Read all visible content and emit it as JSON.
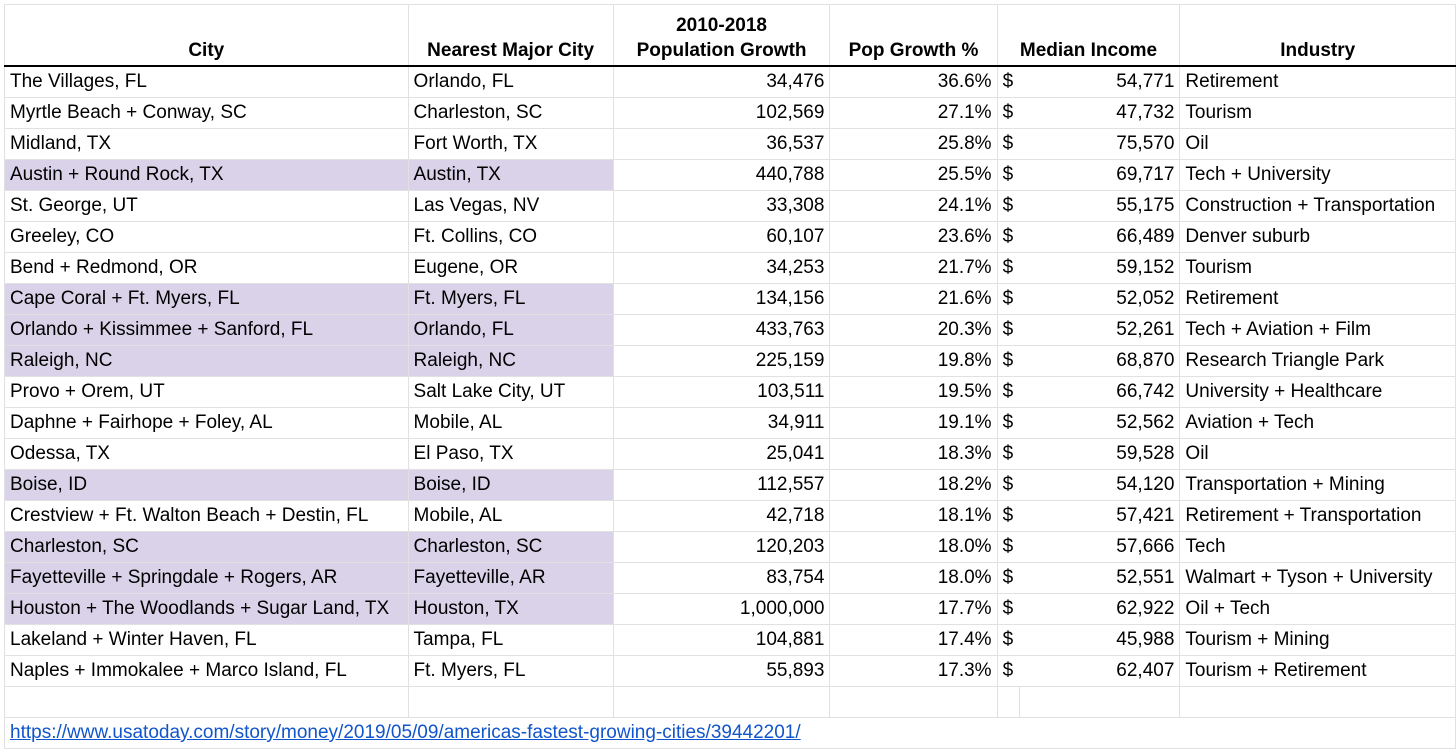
{
  "headers": {
    "city": "City",
    "nearest": "Nearest Major City",
    "pop_growth_line1": "2010-2018",
    "pop_growth_line2": "Population Growth",
    "pct": "Pop Growth %",
    "income": "Median Income",
    "industry": "Industry"
  },
  "currency_symbol": "$",
  "highlight_color": "#d9d2e9",
  "link_color": "#1155cc",
  "rows": [
    {
      "city": "The Villages, FL",
      "nearest": "Orlando, FL",
      "pop": "34,476",
      "pct": "36.6%",
      "income": "54,771",
      "industry": "Retirement",
      "highlight": false
    },
    {
      "city": "Myrtle Beach + Conway, SC",
      "nearest": "Charleston, SC",
      "pop": "102,569",
      "pct": "27.1%",
      "income": "47,732",
      "industry": "Tourism",
      "highlight": false
    },
    {
      "city": "Midland, TX",
      "nearest": "Fort Worth, TX",
      "pop": "36,537",
      "pct": "25.8%",
      "income": "75,570",
      "industry": "Oil",
      "highlight": false
    },
    {
      "city": "Austin + Round Rock, TX",
      "nearest": "Austin, TX",
      "pop": "440,788",
      "pct": "25.5%",
      "income": "69,717",
      "industry": "Tech + University",
      "highlight": true
    },
    {
      "city": "St. George, UT",
      "nearest": "Las Vegas, NV",
      "pop": "33,308",
      "pct": "24.1%",
      "income": "55,175",
      "industry": "Construction + Transportation",
      "highlight": false
    },
    {
      "city": "Greeley, CO",
      "nearest": "Ft. Collins, CO",
      "pop": "60,107",
      "pct": "23.6%",
      "income": "66,489",
      "industry": "Denver suburb",
      "highlight": false
    },
    {
      "city": "Bend + Redmond, OR",
      "nearest": "Eugene, OR",
      "pop": "34,253",
      "pct": "21.7%",
      "income": "59,152",
      "industry": "Tourism",
      "highlight": false
    },
    {
      "city": "Cape Coral + Ft. Myers, FL",
      "nearest": "Ft. Myers, FL",
      "pop": "134,156",
      "pct": "21.6%",
      "income": "52,052",
      "industry": "Retirement",
      "highlight": true
    },
    {
      "city": "Orlando + Kissimmee + Sanford, FL",
      "nearest": "Orlando, FL",
      "pop": "433,763",
      "pct": "20.3%",
      "income": "52,261",
      "industry": "Tech + Aviation + Film",
      "highlight": true
    },
    {
      "city": "Raleigh, NC",
      "nearest": "Raleigh, NC",
      "pop": "225,159",
      "pct": "19.8%",
      "income": "68,870",
      "industry": "Research Triangle Park",
      "highlight": true
    },
    {
      "city": "Provo + Orem, UT",
      "nearest": "Salt Lake City, UT",
      "pop": "103,511",
      "pct": "19.5%",
      "income": "66,742",
      "industry": "University + Healthcare",
      "highlight": false
    },
    {
      "city": "Daphne + Fairhope + Foley, AL",
      "nearest": "Mobile, AL",
      "pop": "34,911",
      "pct": "19.1%",
      "income": "52,562",
      "industry": "Aviation + Tech",
      "highlight": false
    },
    {
      "city": "Odessa, TX",
      "nearest": "El Paso, TX",
      "pop": "25,041",
      "pct": "18.3%",
      "income": "59,528",
      "industry": "Oil",
      "highlight": false
    },
    {
      "city": "Boise, ID",
      "nearest": "Boise, ID",
      "pop": "112,557",
      "pct": "18.2%",
      "income": "54,120",
      "industry": "Transportation + Mining",
      "highlight": true
    },
    {
      "city": "Crestview + Ft. Walton Beach + Destin, FL",
      "nearest": "Mobile, AL",
      "pop": "42,718",
      "pct": "18.1%",
      "income": "57,421",
      "industry": "Retirement + Transportation",
      "highlight": false
    },
    {
      "city": "Charleston, SC",
      "nearest": "Charleston, SC",
      "pop": "120,203",
      "pct": "18.0%",
      "income": "57,666",
      "industry": "Tech",
      "highlight": true
    },
    {
      "city": "Fayetteville + Springdale + Rogers, AR",
      "nearest": "Fayetteville, AR",
      "pop": "83,754",
      "pct": "18.0%",
      "income": "52,551",
      "industry": "Walmart + Tyson + University",
      "highlight": true
    },
    {
      "city": "Houston + The Woodlands + Sugar Land, TX",
      "nearest": "Houston, TX",
      "pop": "1,000,000",
      "pct": "17.7%",
      "income": "62,922",
      "industry": "Oil + Tech",
      "highlight": true
    },
    {
      "city": "Lakeland + Winter Haven, FL",
      "nearest": "Tampa, FL",
      "pop": "104,881",
      "pct": "17.4%",
      "income": "45,988",
      "industry": "Tourism + Mining",
      "highlight": false
    },
    {
      "city": "Naples + Immokalee + Marco Island, FL",
      "nearest": "Ft. Myers, FL",
      "pop": "55,893",
      "pct": "17.3%",
      "income": "62,407",
      "industry": "Tourism + Retirement",
      "highlight": false
    }
  ],
  "source_link": "https://www.usatoday.com/story/money/2019/05/09/americas-fastest-growing-cities/39442201/"
}
